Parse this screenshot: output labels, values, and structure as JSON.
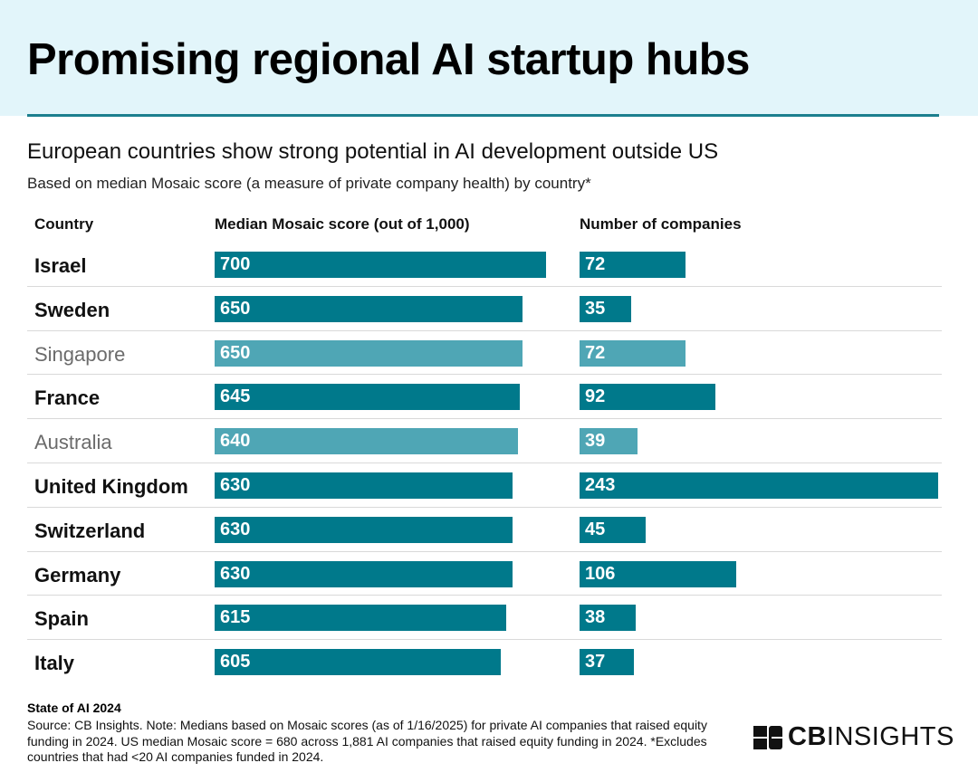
{
  "header": {
    "title": "Promising regional AI startup hubs",
    "subtitle": "European countries show strong potential in AI development outside US",
    "note": "Based on median Mosaic score (a measure of private company health) by country*"
  },
  "columns": {
    "country": "Country",
    "score": "Median Mosaic score (out of 1,000)",
    "companies": "Number of companies"
  },
  "chart_data": {
    "type": "bar",
    "categories": [
      "Israel",
      "Sweden",
      "Singapore",
      "France",
      "Australia",
      "United Kingdom",
      "Switzerland",
      "Germany",
      "Spain",
      "Italy"
    ],
    "series": [
      {
        "name": "Median Mosaic score (out of 1,000)",
        "values": [
          700,
          650,
          650,
          645,
          640,
          630,
          630,
          630,
          615,
          605
        ]
      },
      {
        "name": "Number of companies",
        "values": [
          72,
          35,
          72,
          92,
          39,
          243,
          45,
          106,
          38,
          37
        ]
      }
    ],
    "highlighted": [
      true,
      true,
      false,
      true,
      false,
      true,
      true,
      true,
      true,
      true
    ],
    "colors": {
      "european": "#00798b",
      "non_european": "#4fa6b5"
    },
    "title": "Promising regional AI startup hubs",
    "xlabel": "",
    "ylabel": ""
  },
  "footer": {
    "report": "State of AI 2024",
    "source": "Source: CB Insights. Note: Medians based on Mosaic scores (as of 1/16/2025) for private AI companies that raised equity funding in 2024. US median Mosaic score = 680 across 1,881 AI companies that raised equity funding in 2024. *Excludes countries that had <20 AI companies funded in 2024."
  },
  "logo": {
    "bold": "CB",
    "regular": "INSIGHTS",
    "icon": "cb-insights-logo-icon"
  }
}
